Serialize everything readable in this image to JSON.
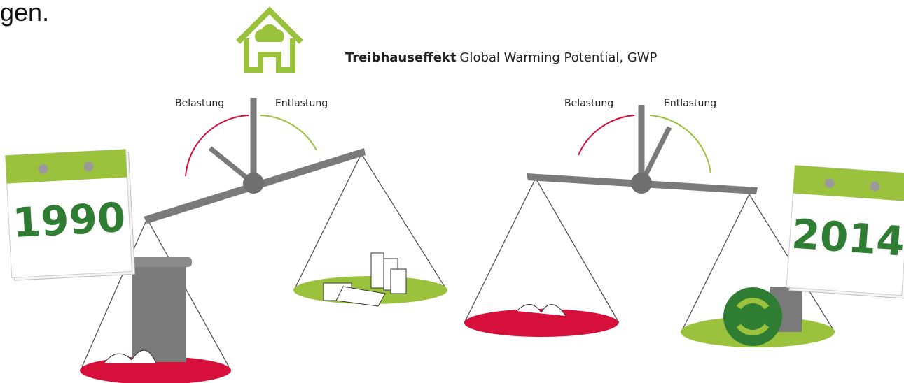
{
  "header": {
    "fragment": "gen.",
    "title_bold": "Treibhauseffekt",
    "title": "Global Warming Potential, GWP"
  },
  "scales": [
    {
      "left_label": "Belastung",
      "right_label": "Entlastung",
      "year": "1990"
    },
    {
      "left_label": "Belastung",
      "right_label": "Entlastung",
      "year": "2014"
    }
  ]
}
